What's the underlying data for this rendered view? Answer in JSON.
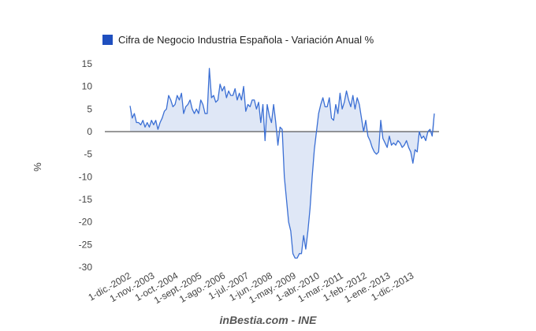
{
  "chart_data": {
    "type": "area",
    "title": "",
    "legend": {
      "label": "Cifra de Negocio Industria Española - Variación Anual %",
      "position": "top"
    },
    "ylabel": "%",
    "xlabel": "",
    "ylim": [
      -30,
      15
    ],
    "yticks": [
      15,
      10,
      5,
      0,
      -5,
      -10,
      -15,
      -20,
      -25,
      -30
    ],
    "xtick_labels": [
      "1-dic.-2002",
      "1-nov.-2003",
      "1-oct.-2004",
      "1-sept.-2005",
      "1-ago.-2006",
      "1-jul.-2007",
      "1-jun.-2008",
      "1-may.-2009",
      "1-abr.-2010",
      "1-mar.-2011",
      "1-feb.-2012",
      "1-ene.-2013",
      "1-dic.-2013"
    ],
    "x_start": "2002-12",
    "x_frequency": "monthly",
    "colors": {
      "line": "#3b6fd4",
      "fill": "#dfe7f6",
      "legend_swatch": "#1f4fbf",
      "zero_line": "#333333"
    },
    "series": [
      {
        "name": "Cifra de Negocio Industria Española - Variación Anual %",
        "values": [
          5.7,
          3.0,
          4.0,
          2.0,
          2.0,
          1.5,
          2.5,
          1.0,
          2.0,
          1.0,
          2.5,
          1.5,
          2.5,
          0.5,
          2.0,
          3.0,
          4.5,
          5.0,
          8.0,
          7.0,
          5.5,
          6.0,
          8.0,
          7.0,
          8.5,
          4.0,
          5.5,
          6.0,
          7.0,
          5.0,
          4.0,
          5.0,
          4.0,
          7.0,
          6.0,
          4.0,
          4.0,
          14.0,
          7.5,
          8.0,
          6.5,
          7.0,
          10.5,
          9.0,
          10.0,
          7.5,
          9.0,
          8.0,
          8.0,
          9.5,
          7.0,
          8.5,
          7.0,
          10.0,
          4.5,
          6.0,
          5.5,
          7.0,
          7.0,
          5.0,
          6.5,
          2.0,
          6.0,
          -2.0,
          6.0,
          3.5,
          2.0,
          6.0,
          2.0,
          -3.0,
          1.0,
          0.5,
          -10.0,
          -15.0,
          -20.0,
          -22.0,
          -27.0,
          -28.0,
          -28.0,
          -27.0,
          -27.0,
          -23.0,
          -26.0,
          -22.0,
          -17.0,
          -10.0,
          -4.0,
          0.0,
          4.0,
          6.0,
          7.5,
          5.5,
          5.5,
          7.5,
          3.0,
          2.5,
          6.0,
          4.0,
          8.5,
          5.0,
          6.5,
          9.0,
          7.0,
          5.5,
          8.0,
          5.0,
          7.5,
          6.0,
          3.0,
          0.0,
          2.5,
          -1.0,
          -2.0,
          -3.5,
          -4.5,
          -5.0,
          -4.5,
          2.5,
          -1.5,
          -2.5,
          -3.5,
          -1.0,
          -3.0,
          -2.5,
          -3.0,
          -2.0,
          -2.5,
          -3.5,
          -3.0,
          -2.0,
          -3.5,
          -4.5,
          -7.0,
          -4.0,
          -4.5,
          0.0,
          -1.5,
          -1.0,
          -2.0,
          0.0,
          0.5,
          -1.0,
          4.0
        ]
      }
    ],
    "grid": false
  },
  "source_note": "inBestia.com - INE"
}
